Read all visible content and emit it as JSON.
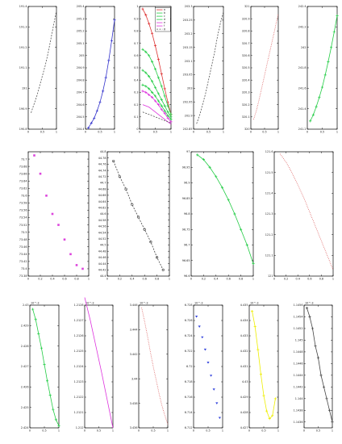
{
  "chart_data": [
    {
      "type": "line",
      "yticks": [
        "191.4",
        "191.3",
        "191.2",
        "191.1",
        "191",
        "190.9",
        "190.8"
      ],
      "xticks": [
        "0",
        "0.5",
        "1"
      ],
      "ylabel": "",
      "xlabel": "",
      "ylim": [
        190.8,
        191.4
      ],
      "xlim": [
        0,
        1
      ],
      "series": [
        {
          "color": "#555555",
          "dash": "2,1.5",
          "marker": "none",
          "x": [
            0.1,
            0.2,
            0.3,
            0.4,
            0.5,
            0.6,
            0.7,
            0.8,
            0.9,
            1.0
          ],
          "y": [
            190.88,
            190.92,
            190.96,
            191.01,
            191.06,
            191.11,
            191.17,
            191.24,
            191.31,
            191.38
          ]
        }
      ]
    },
    {
      "type": "line",
      "yticks": [
        "205.4",
        "205.3",
        "205.2",
        "205.1",
        "205",
        "204.9",
        "204.8",
        "204.7",
        "204.6",
        "204.5",
        "204.4"
      ],
      "xticks": [
        "0",
        "0.5",
        "1"
      ],
      "ylabel": "",
      "xlabel": "",
      "ylim": [
        204.4,
        205.4
      ],
      "xlim": [
        0,
        1
      ],
      "series": [
        {
          "color": "#3333cc",
          "dash": "",
          "marker": "plus",
          "x": [
            0.1,
            0.2,
            0.3,
            0.4,
            0.5,
            0.6,
            0.7,
            0.8,
            0.9,
            1.0
          ],
          "y": [
            204.41,
            204.45,
            204.49,
            204.55,
            204.62,
            204.71,
            204.82,
            204.96,
            205.12,
            205.29
          ]
        }
      ]
    },
    {
      "type": "line",
      "yticks": [
        "1",
        "0.9",
        "0.8",
        "0.7",
        "0.6",
        "0.5",
        "0.4",
        "0.3",
        "0.2",
        "0.1",
        "0"
      ],
      "xticks": [
        "0",
        "0.5",
        "1"
      ],
      "ylabel": "",
      "xlabel": "",
      "ylim": [
        0,
        1
      ],
      "xlim": [
        0,
        1
      ],
      "legend": [
        "a",
        "b",
        "c",
        "d",
        "e",
        "f",
        "g"
      ],
      "series": [
        {
          "name": "a",
          "color": "#dd3333",
          "dash": "",
          "marker": "plus",
          "x": [
            0.1,
            0.2,
            0.3,
            0.4,
            0.5,
            0.6,
            0.7,
            0.8,
            0.9,
            1.0
          ],
          "y": [
            0.98,
            0.93,
            0.86,
            0.78,
            0.68,
            0.57,
            0.45,
            0.33,
            0.22,
            0.12
          ]
        },
        {
          "name": "b",
          "color": "#22cc44",
          "dash": "",
          "marker": "plus",
          "x": [
            0.1,
            0.2,
            0.3,
            0.4,
            0.5,
            0.6,
            0.7,
            0.8,
            0.9,
            1.0
          ],
          "y": [
            0.65,
            0.63,
            0.6,
            0.55,
            0.49,
            0.42,
            0.35,
            0.27,
            0.19,
            0.12
          ]
        },
        {
          "name": "c",
          "color": "#22cc44",
          "dash": "",
          "marker": "plus",
          "x": [
            0.1,
            0.2,
            0.3,
            0.4,
            0.5,
            0.6,
            0.7,
            0.8,
            0.9,
            1.0
          ],
          "y": [
            0.48,
            0.46,
            0.43,
            0.39,
            0.34,
            0.29,
            0.24,
            0.19,
            0.14,
            0.1
          ]
        },
        {
          "name": "d",
          "color": "#22cc44",
          "dash": "",
          "marker": "plus",
          "x": [
            0.1,
            0.2,
            0.3,
            0.4,
            0.5,
            0.6,
            0.7,
            0.8,
            0.9,
            1.0
          ],
          "y": [
            0.36,
            0.35,
            0.33,
            0.3,
            0.27,
            0.23,
            0.19,
            0.15,
            0.11,
            0.08
          ]
        },
        {
          "name": "e",
          "color": "#dd33dd",
          "dash": "",
          "marker": "plus",
          "x": [
            0.1,
            0.2,
            0.3,
            0.4,
            0.5,
            0.6,
            0.7,
            0.8,
            0.9,
            1.0
          ],
          "y": [
            0.31,
            0.3,
            0.28,
            0.26,
            0.23,
            0.2,
            0.16,
            0.13,
            0.09,
            0.06
          ]
        },
        {
          "name": "f",
          "color": "#dd33dd",
          "dash": "",
          "marker": "none",
          "x": [
            0.1,
            0.2,
            0.3,
            0.4,
            0.5,
            0.6,
            0.7,
            0.8,
            0.9,
            1.0
          ],
          "y": [
            0.2,
            0.19,
            0.18,
            0.16,
            0.14,
            0.12,
            0.1,
            0.08,
            0.06,
            0.04
          ]
        },
        {
          "name": "g",
          "color": "#555555",
          "dash": "2,1.5",
          "marker": "none",
          "x": [
            0.1,
            0.2,
            0.3,
            0.4,
            0.5,
            0.6,
            0.7,
            0.8,
            0.9,
            1.0
          ],
          "y": [
            0.14,
            0.13,
            0.12,
            0.11,
            0.1,
            0.09,
            0.08,
            0.07,
            0.06,
            0.05
          ]
        }
      ]
    },
    {
      "type": "line",
      "yticks": [
        "203.3",
        "203.25",
        "203.2",
        "203.15",
        "203.1",
        "203.05",
        "203",
        "202.95",
        "202.9",
        "202.85"
      ],
      "xticks": [
        "0",
        "0.5",
        "1"
      ],
      "ylabel": "",
      "xlabel": "",
      "ylim": [
        202.85,
        203.3
      ],
      "xlim": [
        0,
        1
      ],
      "series": [
        {
          "color": "#555555",
          "dash": "2,1.5",
          "marker": "none",
          "x": [
            0.1,
            0.2,
            0.3,
            0.4,
            0.5,
            0.6,
            0.7,
            0.8,
            0.9,
            1.0
          ],
          "y": [
            202.87,
            202.9,
            202.94,
            202.98,
            203.03,
            203.08,
            203.13,
            203.19,
            203.24,
            203.28
          ]
        }
      ]
    },
    {
      "type": "line",
      "yticks": [
        "321",
        "320.9",
        "320.8",
        "320.7",
        "320.6",
        "320.5",
        "320.4",
        "320.3",
        "320.2",
        "320.1",
        "320"
      ],
      "xticks": [
        "0",
        "0.5",
        "1"
      ],
      "ylabel": "",
      "xlabel": "",
      "ylim": [
        320,
        321
      ],
      "xlim": [
        0,
        1
      ],
      "series": [
        {
          "color": "#dd6666",
          "dash": "1,1.2",
          "marker": "none",
          "x": [
            0.1,
            0.2,
            0.3,
            0.4,
            0.5,
            0.6,
            0.7,
            0.8,
            0.9,
            1.0
          ],
          "y": [
            320.08,
            320.15,
            320.24,
            320.34,
            320.44,
            320.54,
            320.64,
            320.74,
            320.84,
            320.94
          ]
        }
      ]
    },
    {
      "type": "line",
      "yticks": [
        "242.4",
        "242.2",
        "242",
        "241.8",
        "241.6",
        "241.4",
        "241.2"
      ],
      "xticks": [
        "0",
        "0.5",
        "1"
      ],
      "ylabel": "",
      "xlabel": "",
      "ylim": [
        241.2,
        242.4
      ],
      "xlim": [
        0,
        1
      ],
      "series": [
        {
          "color": "#22cc44",
          "dash": "",
          "marker": "plus",
          "x": [
            0.1,
            0.2,
            0.3,
            0.4,
            0.5,
            0.6,
            0.7,
            0.8,
            0.9,
            1.0
          ],
          "y": [
            241.28,
            241.34,
            241.42,
            241.51,
            241.61,
            241.73,
            241.86,
            242.0,
            242.15,
            242.31
          ]
        }
      ]
    },
    {
      "type": "scatter",
      "yticks": [
        "73.7",
        "73.68",
        "73.66",
        "73.64",
        "73.62",
        "73.6",
        "73.58",
        "73.56",
        "73.54",
        "73.52",
        "73.5",
        "73.48",
        "73.46",
        "73.44",
        "73.42",
        "73.4",
        "73.38"
      ],
      "xticks": [
        "0",
        "0.2",
        "0.4",
        "0.6",
        "0.8",
        "1"
      ],
      "ylabel": "",
      "xlabel": "",
      "ylim": [
        73.38,
        73.72
      ],
      "xlim": [
        0,
        1
      ],
      "series": [
        {
          "color": "#dd44dd",
          "dash": "",
          "marker": "square",
          "line": false,
          "x": [
            0.1,
            0.2,
            0.3,
            0.4,
            0.5,
            0.6,
            0.7,
            0.8,
            0.9
          ],
          "y": [
            73.71,
            73.66,
            73.6,
            73.55,
            73.52,
            73.48,
            73.44,
            73.41,
            73.4
          ]
        }
      ]
    },
    {
      "type": "line",
      "yticks": [
        "44.8",
        "44.78",
        "44.76",
        "44.74",
        "44.72",
        "44.7",
        "44.68",
        "44.66",
        "44.64",
        "44.62",
        "44.6",
        "44.58",
        "44.56",
        "44.54",
        "44.52",
        "44.5",
        "44.48",
        "44.46",
        "44.44",
        "44.42",
        "44.4"
      ],
      "xticks": [
        "0",
        "0.2",
        "0.4",
        "0.6",
        "0.8",
        "1"
      ],
      "ylabel": "",
      "xlabel": "",
      "ylim": [
        44.4,
        44.8
      ],
      "xlim": [
        0,
        1
      ],
      "series": [
        {
          "color": "#444444",
          "dash": "2,1.5",
          "marker": "circle",
          "x": [
            0.1,
            0.2,
            0.3,
            0.4,
            0.5,
            0.6,
            0.7,
            0.8,
            0.9
          ],
          "y": [
            44.77,
            44.72,
            44.68,
            44.63,
            44.59,
            44.55,
            44.51,
            44.46,
            44.42
          ]
        }
      ]
    },
    {
      "type": "line",
      "yticks": [
        "97",
        "96.95",
        "96.9",
        "96.85",
        "96.8",
        "96.75",
        "96.7",
        "96.65",
        "96.6"
      ],
      "xticks": [
        "0",
        "0.2",
        "0.4",
        "0.6",
        "0.8",
        "1"
      ],
      "ylabel": "",
      "xlabel": "",
      "ylim": [
        96.6,
        97.0
      ],
      "xlim": [
        0,
        1
      ],
      "series": [
        {
          "color": "#22cc44",
          "dash": "",
          "marker": "plus",
          "x": [
            0.1,
            0.2,
            0.3,
            0.4,
            0.5,
            0.6,
            0.7,
            0.8,
            0.9,
            1.0
          ],
          "y": [
            96.99,
            96.975,
            96.95,
            96.92,
            96.885,
            96.845,
            96.8,
            96.75,
            96.7,
            96.64
          ]
        }
      ]
    },
    {
      "type": "line",
      "yticks": [
        "121.6",
        "121.5",
        "121.4",
        "121.3",
        "121.2",
        "121.1",
        "121"
      ],
      "xticks": [
        "0",
        "0.2",
        "0.4",
        "0.6",
        "0.8",
        "1"
      ],
      "ylabel": "",
      "xlabel": "",
      "ylim": [
        121,
        121.6
      ],
      "xlim": [
        0,
        1
      ],
      "series": [
        {
          "color": "#dd6666",
          "dash": "1,1.2",
          "marker": "none",
          "x": [
            0.1,
            0.2,
            0.3,
            0.4,
            0.5,
            0.6,
            0.7,
            0.8,
            0.9,
            1.0
          ],
          "y": [
            121.59,
            121.55,
            121.5,
            121.44,
            121.38,
            121.31,
            121.24,
            121.17,
            121.1,
            121.03
          ]
        }
      ]
    },
    {
      "type": "line",
      "sci": "10^-3",
      "yticks": [
        "2.43",
        "2.429",
        "2.428",
        "2.427",
        "2.426",
        "2.425",
        "2.424"
      ],
      "xticks": [
        "0",
        "0.5",
        "1"
      ],
      "ylabel": "",
      "xlabel": "",
      "ylim": [
        2.424,
        2.43
      ],
      "xlim": [
        0,
        1
      ],
      "series": [
        {
          "color": "#22cc44",
          "dash": "",
          "marker": "plus",
          "x": [
            0.1,
            0.2,
            0.3,
            0.4,
            0.5,
            0.6,
            0.7,
            0.8,
            0.9,
            1.0
          ],
          "y": [
            2.4298,
            2.4293,
            2.4286,
            2.4279,
            2.4271,
            2.4263,
            2.4256,
            2.4249,
            2.4244,
            2.4241
          ]
        }
      ]
    },
    {
      "type": "line",
      "sci": "10^-3",
      "yticks": [
        "1.2128",
        "1.2127",
        "1.2126",
        "1.2125",
        "1.2124",
        "1.2123",
        "1.2122",
        "1.2121",
        "1.212"
      ],
      "xticks": [
        "0",
        "0.5",
        "1"
      ],
      "ylabel": "",
      "xlabel": "",
      "ylim": [
        1.212,
        1.2128
      ],
      "xlim": [
        0,
        1
      ],
      "series": [
        {
          "color": "#dd33dd",
          "dash": "",
          "marker": "none",
          "x": [
            0,
            0.2,
            0.4,
            0.6,
            0.8,
            1.0
          ],
          "y": [
            1.21285,
            1.2127,
            1.21253,
            1.21236,
            1.21218,
            1.212
          ]
        }
      ]
    },
    {
      "type": "line",
      "sci": "10^-3",
      "yticks": [
        "3.446",
        "3.444",
        "3.442",
        "3.44",
        "3.438",
        "3.436"
      ],
      "xticks": [
        "0",
        "0.5",
        "1"
      ],
      "ylabel": "",
      "xlabel": "",
      "ylim": [
        3.436,
        3.446
      ],
      "xlim": [
        0,
        1
      ],
      "series": [
        {
          "color": "#dd6666",
          "dash": "1,1.2",
          "marker": "none",
          "x": [
            0.1,
            0.2,
            0.3,
            0.4,
            0.5,
            0.6,
            0.7,
            0.8,
            0.9,
            1.0
          ],
          "y": [
            3.4458,
            3.4447,
            3.4435,
            3.4422,
            3.441,
            3.4399,
            3.4388,
            3.4378,
            3.437,
            3.4363
          ]
        }
      ]
    },
    {
      "type": "scatter",
      "sci": "10^-3",
      "yticks": [
        "6.728",
        "6.726",
        "6.724",
        "6.722",
        "6.72",
        "6.718",
        "6.716",
        "6.714",
        "6.712"
      ],
      "xticks": [
        "0",
        "0.5",
        "1"
      ],
      "ylabel": "",
      "xlabel": "",
      "ylim": [
        6.712,
        6.728
      ],
      "xlim": [
        0,
        1
      ],
      "series": [
        {
          "color": "#3344dd",
          "dash": "",
          "marker": "triangle",
          "line": false,
          "x": [
            0.1,
            0.2,
            0.3,
            0.4,
            0.5,
            0.6,
            0.7,
            0.8,
            0.9
          ],
          "y": [
            6.7265,
            6.7252,
            6.7238,
            6.7222,
            6.7205,
            6.7188,
            6.717,
            6.7152,
            6.7133
          ]
        }
      ]
    },
    {
      "type": "line",
      "sci": "10^-3",
      "yticks": [
        "4.435",
        "4.434",
        "4.433",
        "4.432",
        "4.431",
        "4.43",
        "4.429",
        "4.428",
        "4.427"
      ],
      "xticks": [
        "0",
        "0.5",
        "1"
      ],
      "ylabel": "",
      "xlabel": "",
      "ylim": [
        4.427,
        4.435
      ],
      "xlim": [
        0,
        1
      ],
      "series": [
        {
          "color": "#eeee00",
          "dash": "",
          "marker": "plus",
          "x": [
            0.1,
            0.2,
            0.3,
            0.4,
            0.5,
            0.6,
            0.7,
            0.8,
            0.9
          ],
          "y": [
            4.4346,
            4.4336,
            4.4321,
            4.4305,
            4.4291,
            4.4281,
            4.4276,
            4.4278,
            4.4289
          ]
        }
      ]
    },
    {
      "type": "line",
      "sci": "10^-3",
      "yticks": [
        "1.1456",
        "1.1454",
        "1.1452",
        "1.145",
        "1.1448",
        "1.1446",
        "1.1444",
        "1.1442",
        "1.144",
        "1.1438",
        "1.1436"
      ],
      "xticks": [
        "0",
        "0.5",
        "1"
      ],
      "ylabel": "",
      "xlabel": "",
      "ylim": [
        1.1435,
        1.1456
      ],
      "xlim": [
        0,
        1
      ],
      "series": [
        {
          "color": "#444444",
          "dash": "",
          "marker": "plus",
          "x": [
            0.1,
            0.2,
            0.3,
            0.4,
            0.5,
            0.6,
            0.7,
            0.8,
            0.9,
            1.0
          ],
          "y": [
            1.14555,
            1.1454,
            1.1452,
            1.1449,
            1.1447,
            1.1444,
            1.1442,
            1.144,
            1.1438,
            1.1436
          ]
        }
      ]
    }
  ]
}
